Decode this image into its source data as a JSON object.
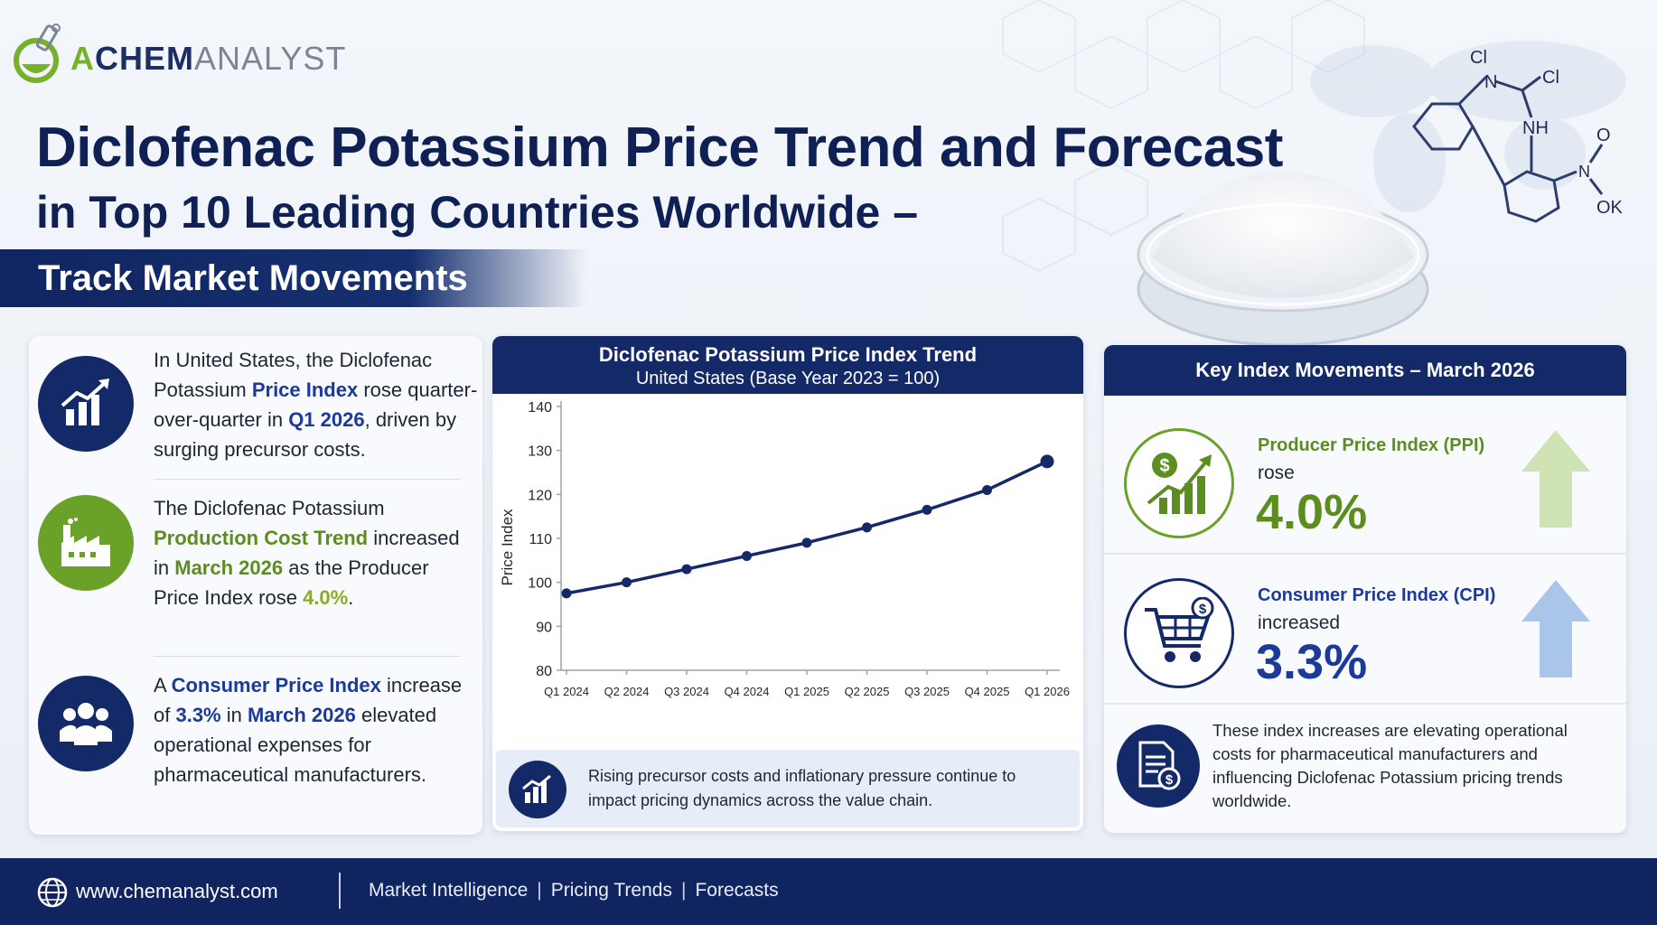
{
  "brand": {
    "part1": "A",
    "part2": "CHEM",
    "part3": "ANALYST"
  },
  "header": {
    "title_line1": "Diclofenac Potassium Price Trend and Forecast",
    "title_line2": "in Top 10 Leading Countries Worldwide –",
    "ribbon": "Track Market Movements"
  },
  "molecule_labels": {
    "cl1": "Cl",
    "cl2": "Cl",
    "n": "N",
    "nh": "NH",
    "o": "O",
    "n2": "N",
    "ok": "OK"
  },
  "left_panel": {
    "item1": {
      "t1": "In United States, the Diclofenac Potassium ",
      "h1": "Price Index",
      "t2": " rose quarter-over-quarter in ",
      "h2": "Q1 2026",
      "t3": ", driven by surging precursor costs."
    },
    "item2": {
      "t1": "The Diclofenac Potassium ",
      "h1": "Production Cost Trend",
      "t2": " increased in ",
      "h2": "March 2026",
      "t3": " as the Producer Price Index rose ",
      "h3": "4.0%",
      "t4": "."
    },
    "item3": {
      "t1": "A ",
      "h1": "Consumer Price Index",
      "t2": " increase of ",
      "h2": "3.3%",
      "t3": " in ",
      "h3": "March 2026",
      "t4": " elevated operational expenses for pharmaceutical manufacturers."
    }
  },
  "chart_panel": {
    "title": "Diclofenac Potassium Price Index Trend",
    "subtitle": "United States (Base Year 2023 = 100)",
    "note": "Rising precursor costs and inflationary pressure continue to impact pricing dynamics across the value chain."
  },
  "chart_data": {
    "type": "line",
    "title": "Diclofenac Potassium Price Index Trend",
    "subtitle": "United States (Base Year 2023 = 100)",
    "xlabel": "",
    "ylabel": "Price Index",
    "categories": [
      "Q1 2024",
      "Q2 2024",
      "Q3 2024",
      "Q4 2024",
      "Q1 2025",
      "Q2 2025",
      "Q3 2025",
      "Q4 2025",
      "Q1 2026"
    ],
    "values": [
      97.5,
      100,
      103,
      106,
      109,
      112.5,
      116.5,
      121,
      127.5
    ],
    "ylim": [
      80,
      140
    ],
    "yticks": [
      80,
      90,
      100,
      110,
      120,
      130,
      140
    ],
    "grid": false,
    "color": "#142a68"
  },
  "right_panel": {
    "title": "Key Index Movements – March 2026",
    "ppi": {
      "label": "Producer Price Index (PPI)",
      "verb": "rose",
      "value": "4.0%",
      "color": "#5c8d1f"
    },
    "cpi": {
      "label": "Consumer Price Index (CPI)",
      "verb": "increased",
      "value": "3.3%",
      "color": "#1b3a9a"
    },
    "footer_text": "These index increases are elevating operational costs for pharmaceutical manufacturers and influencing Diclofenac Potassium pricing trends worldwide."
  },
  "footer": {
    "site": "www.chemanalyst.com",
    "links": [
      "Market Intelligence",
      "Pricing Trends",
      "Forecasts"
    ]
  },
  "icons": [
    "flask-icon",
    "chart-up-icon",
    "factory-icon",
    "people-icon",
    "dollar-chart-icon",
    "cart-icon",
    "document-dollar-icon",
    "globe-icon",
    "arrow-up-icon"
  ]
}
